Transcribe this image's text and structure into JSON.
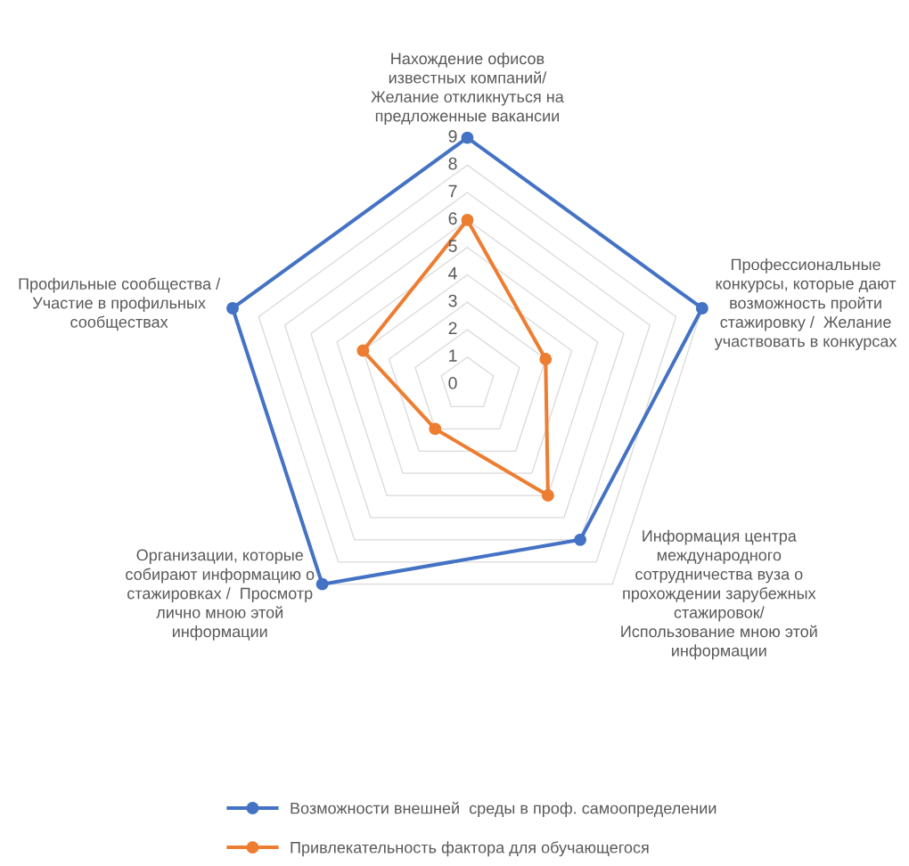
{
  "chart_data": {
    "type": "radar",
    "categories": [
      "Нахождение офисов\nизвестных компаний/\nЖелание откликнуться на\nпредложенные вакансии",
      "Профессиональные\nконкурсы, которые дают\nвозможность пройти\nстажировку /  Желание\nучаствовать в конкурсах",
      "Информация центра\nмеждународного\nсотрудничества вуза о\nпрохождении зарубежных\nстажировок/\nИспользование мною этой\nинформации",
      "Организации, которые\nсобирают информацию о\nстажировках /  Просмотр\nлично мною этой\nинформации",
      "Профильные сообщества /\nУчастие в профильных\nсообществах"
    ],
    "series": [
      {
        "name": "Возможности внешней  среды в проф. самоопределении",
        "color": "#4472c4",
        "values": [
          9,
          9,
          7,
          9,
          9
        ]
      },
      {
        "name": "Привлекательность фактора для обучающегося",
        "color": "#ed7d31",
        "values": [
          6,
          3,
          5,
          2,
          4
        ]
      }
    ],
    "ylim": [
      0,
      9
    ],
    "yticks": [
      0,
      1,
      2,
      3,
      4,
      5,
      6,
      7,
      8,
      9
    ],
    "grid": true,
    "legend": "bottom",
    "marker": "circle",
    "line_style": "solid"
  }
}
